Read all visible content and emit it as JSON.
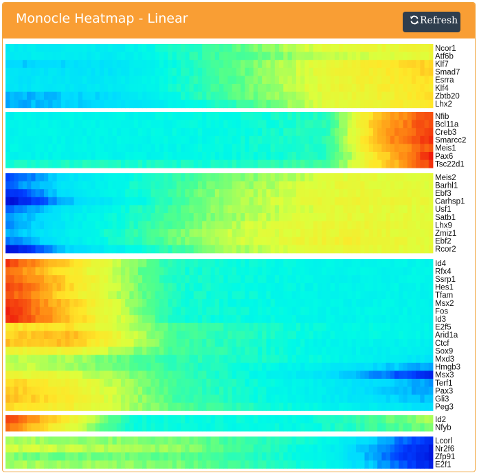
{
  "panel": {
    "title": "Monocle Heatmap - Linear",
    "refresh_label": "Refresh",
    "refresh_icon": "refresh-icon",
    "accent_color": "#f99e34",
    "button_color": "#2f3e4e"
  },
  "chart_data": {
    "type": "heatmap",
    "title": "",
    "xlabel": "",
    "ylabel": "",
    "color_scale": "jet (blue = low, cyan, green, yellow, red = high)",
    "value_range": [
      -3,
      3
    ],
    "n_columns": 100,
    "clusters": [
      {
        "genes": [
          "Ncor1",
          "Atf6b",
          "Klf7",
          "Smad7",
          "Esrra",
          "Klf4",
          "Zbtb20",
          "Lhx2"
        ],
        "anchor_positions": [
          0,
          0.25,
          0.5,
          0.75,
          1
        ],
        "values": [
          [
            -0.8,
            -0.8,
            0.0,
            0.8,
            1.0
          ],
          [
            -0.8,
            -0.8,
            0.0,
            0.6,
            0.9
          ],
          [
            -1.3,
            -1.0,
            0.0,
            0.9,
            1.5
          ],
          [
            -1.0,
            -1.0,
            0.0,
            0.9,
            1.5
          ],
          [
            -1.0,
            -0.9,
            0.0,
            0.9,
            1.4
          ],
          [
            -1.0,
            -0.9,
            0.0,
            0.9,
            1.3
          ],
          [
            -1.5,
            -1.1,
            0.0,
            0.8,
            1.3
          ],
          [
            -1.5,
            -1.1,
            -0.3,
            0.8,
            1.3
          ]
        ]
      },
      {
        "genes": [
          "Nfib",
          "Bcl11a",
          "Creb3",
          "Smarcc2",
          "Meis1",
          "Pax6",
          "Tsc22d1"
        ],
        "anchor_positions": [
          0,
          0.25,
          0.5,
          0.75,
          0.87,
          1
        ],
        "values": [
          [
            -0.6,
            -0.6,
            -0.5,
            -0.2,
            1.6,
            2.6
          ],
          [
            -0.6,
            -0.6,
            -0.5,
            -0.2,
            1.7,
            2.6
          ],
          [
            -0.6,
            -0.6,
            -0.5,
            -0.2,
            1.7,
            2.7
          ],
          [
            -0.6,
            -0.6,
            -0.5,
            -0.2,
            1.8,
            2.7
          ],
          [
            -0.6,
            -0.6,
            -0.5,
            -0.2,
            1.6,
            2.5
          ],
          [
            -0.6,
            -0.6,
            -0.5,
            -0.2,
            1.3,
            2.8
          ],
          [
            -0.3,
            -0.3,
            -0.3,
            0.0,
            1.3,
            2.6
          ]
        ]
      },
      {
        "genes": [
          "Meis2",
          "Barhl1",
          "Ebf3",
          "Carhsp1",
          "Usf1",
          "Satb1",
          "Lhx9",
          "Zmiz1",
          "Ebf2",
          "Rcor2"
        ],
        "anchor_positions": [
          0,
          0.15,
          0.5,
          0.8,
          1
        ],
        "values": [
          [
            -2.2,
            -1.0,
            0.2,
            0.8,
            0.8
          ],
          [
            -1.9,
            -0.9,
            0.3,
            0.9,
            0.8
          ],
          [
            -2.4,
            -1.0,
            0.4,
            0.9,
            0.8
          ],
          [
            -2.8,
            -1.3,
            0.4,
            1.0,
            0.9
          ],
          [
            -2.0,
            -0.9,
            0.4,
            0.9,
            0.8
          ],
          [
            -1.6,
            -0.8,
            0.4,
            0.9,
            0.8
          ],
          [
            -1.7,
            -0.8,
            0.5,
            1.0,
            0.8
          ],
          [
            -1.5,
            -0.7,
            0.6,
            1.0,
            0.8
          ],
          [
            -1.8,
            -0.8,
            0.6,
            1.1,
            0.8
          ],
          [
            -2.8,
            -1.2,
            0.4,
            1.0,
            0.8
          ]
        ]
      },
      {
        "genes": [
          "Id4",
          "Rfx4",
          "Ssrp1",
          "Hes1",
          "Tfam",
          "Msx2",
          "Fos",
          "Id3",
          "E2f5",
          "Arid1a",
          "Ctcf",
          "Sox9",
          "Mxd3",
          "Hmgb3",
          "Msx3",
          "Terf1",
          "Pax3",
          "Gli3",
          "Peg3"
        ],
        "anchor_positions": [
          0,
          0.15,
          0.4,
          0.75,
          1
        ],
        "values": [
          [
            2.6,
            1.4,
            -0.3,
            -0.6,
            -0.6
          ],
          [
            2.3,
            1.2,
            -0.3,
            -0.6,
            -0.6
          ],
          [
            2.5,
            1.4,
            -0.3,
            -0.6,
            -0.6
          ],
          [
            2.7,
            1.4,
            -0.3,
            -0.6,
            -0.6
          ],
          [
            2.5,
            1.3,
            -0.3,
            -0.6,
            -0.6
          ],
          [
            2.7,
            1.5,
            -0.3,
            -0.6,
            -0.6
          ],
          [
            2.8,
            1.5,
            -0.3,
            -0.6,
            -0.6
          ],
          [
            2.8,
            1.6,
            -0.3,
            -0.6,
            -0.6
          ],
          [
            1.3,
            1.3,
            0.0,
            -0.5,
            -0.6
          ],
          [
            1.5,
            1.7,
            0.0,
            -0.5,
            -0.6
          ],
          [
            1.6,
            1.6,
            0.0,
            -0.6,
            -0.7
          ],
          [
            1.0,
            1.0,
            0.0,
            -0.6,
            -0.8
          ],
          [
            0.6,
            0.5,
            -0.1,
            -0.5,
            -1.0
          ],
          [
            0.6,
            0.5,
            -0.1,
            -0.8,
            -1.6
          ],
          [
            1.0,
            0.8,
            0.0,
            -1.0,
            -2.4
          ],
          [
            1.5,
            1.0,
            0.0,
            -0.8,
            -1.6
          ],
          [
            1.6,
            1.1,
            0.0,
            -0.8,
            -1.6
          ],
          [
            1.7,
            1.2,
            0.0,
            -0.8,
            -1.4
          ],
          [
            1.4,
            1.1,
            0.1,
            -0.6,
            -1.1
          ]
        ]
      },
      {
        "genes": [
          "Id2",
          "Nfyb"
        ],
        "anchor_positions": [
          0,
          0.1,
          0.3,
          0.7,
          1
        ],
        "values": [
          [
            2.6,
            1.6,
            -0.4,
            -0.5,
            0.5
          ],
          [
            2.2,
            1.3,
            -0.4,
            -0.5,
            0.3
          ]
        ]
      },
      {
        "genes": [
          "Lcorl",
          "Nr2f6",
          "Zfp91",
          "E2f1"
        ],
        "anchor_positions": [
          0,
          0.4,
          0.75,
          0.9,
          1
        ],
        "values": [
          [
            0.5,
            0.3,
            -0.5,
            -1.6,
            -2.4
          ],
          [
            0.7,
            0.4,
            -0.6,
            -1.8,
            -2.6
          ],
          [
            0.3,
            0.2,
            -0.6,
            -1.9,
            -2.7
          ],
          [
            0.5,
            0.3,
            -0.5,
            -1.7,
            -2.5
          ]
        ]
      }
    ]
  }
}
